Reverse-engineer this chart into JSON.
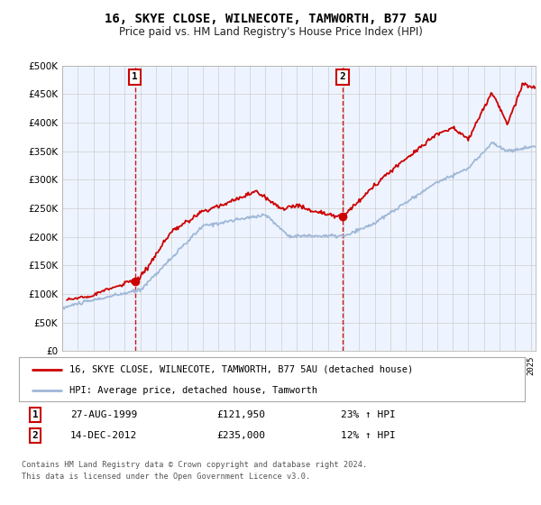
{
  "title": "16, SKYE CLOSE, WILNECOTE, TAMWORTH, B77 5AU",
  "subtitle": "Price paid vs. HM Land Registry's House Price Index (HPI)",
  "legend_line1": "16, SKYE CLOSE, WILNECOTE, TAMWORTH, B77 5AU (detached house)",
  "legend_line2": "HPI: Average price, detached house, Tamworth",
  "footnote1": "Contains HM Land Registry data © Crown copyright and database right 2024.",
  "footnote2": "This data is licensed under the Open Government Licence v3.0.",
  "transaction1_date": "27-AUG-1999",
  "transaction1_price": "£121,950",
  "transaction1_hpi": "23% ↑ HPI",
  "transaction2_date": "14-DEC-2012",
  "transaction2_price": "£235,000",
  "transaction2_hpi": "12% ↑ HPI",
  "hpi_color": "#a0b8d8",
  "price_color": "#cc0000",
  "plot_bg": "#eef4ff",
  "ylim": [
    0,
    500000
  ],
  "yticks": [
    0,
    50000,
    100000,
    150000,
    200000,
    250000,
    300000,
    350000,
    400000,
    450000,
    500000
  ],
  "transaction1_x": 1999.65,
  "transaction1_y": 121950,
  "transaction2_x": 2012.95,
  "transaction2_y": 235000,
  "xlim_left": 1995,
  "xlim_right": 2025.3
}
